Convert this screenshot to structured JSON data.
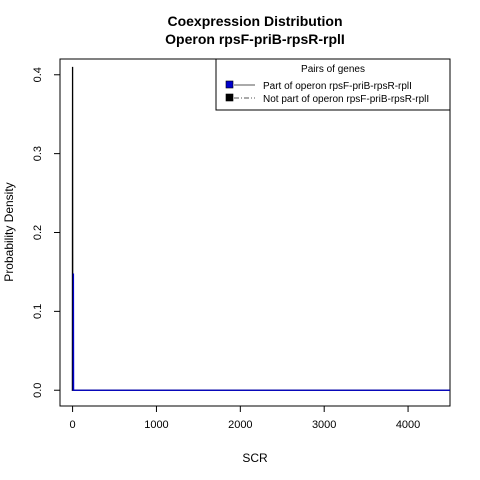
{
  "chart_data": {
    "type": "line",
    "title": [
      "Coexpression Distribution",
      "Operon rpsF-priB-rpsR-rplI"
    ],
    "xlabel": "SCR",
    "ylabel": "Probability Density",
    "xlim": [
      -150,
      4500
    ],
    "ylim": [
      -0.02,
      0.42
    ],
    "x_ticks": [
      0,
      1000,
      2000,
      3000,
      4000
    ],
    "y_ticks": [
      0.0,
      0.1,
      0.2,
      0.3,
      0.4
    ],
    "x_tick_labels": [
      "0",
      "1000",
      "2000",
      "3000",
      "4000"
    ],
    "y_tick_labels": [
      "0.0",
      "0.1",
      "0.2",
      "0.3",
      "0.4"
    ],
    "grid": false,
    "legend": {
      "title": "Pairs of genes",
      "placement": "top-right",
      "entries": [
        {
          "label": "Part of operon rpsF-priB-rpsR-rplI",
          "color": "#0000cc",
          "line_style": "solid"
        },
        {
          "label": "Not part of operon rpsF-priB-rpsR-rplI",
          "color": "#000000",
          "line_style": "dashdot"
        }
      ]
    },
    "series": [
      {
        "name": "Part of operon rpsF-priB-rpsR-rplI",
        "color": "#0000cc",
        "x": [
          0,
          8,
          10,
          12,
          20,
          4500
        ],
        "y": [
          0,
          0,
          0.148,
          0,
          0,
          0
        ]
      },
      {
        "name": "Not part of operon rpsF-priB-rpsR-rplI",
        "color": "#000000",
        "x": [
          -10,
          -2,
          0,
          2,
          10,
          4500
        ],
        "y": [
          0,
          0,
          0.41,
          0,
          0,
          0
        ]
      }
    ]
  }
}
